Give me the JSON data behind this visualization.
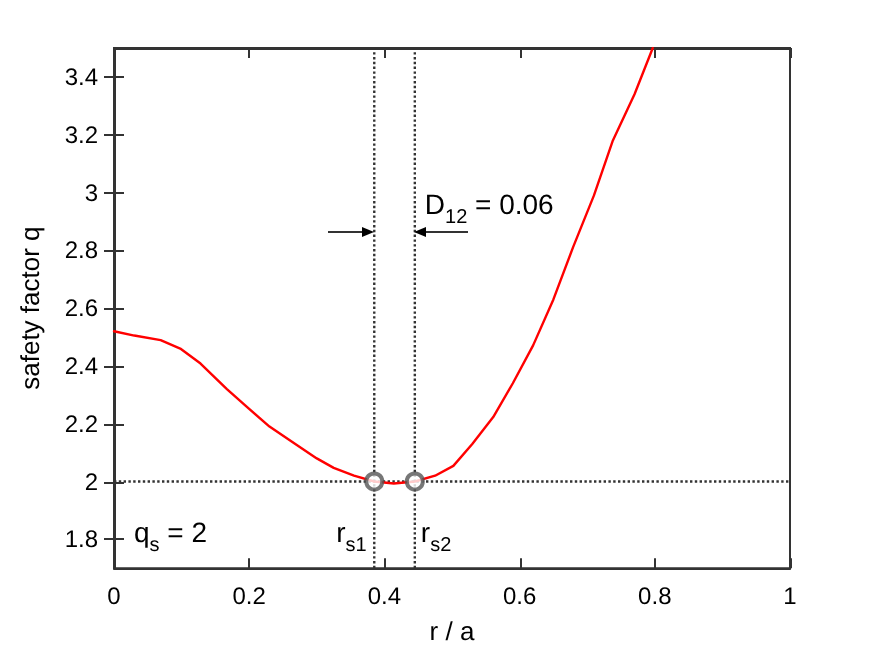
{
  "chart_data": {
    "type": "line",
    "xlabel": "r / a",
    "ylabel": "safety factor q",
    "x": [
      0,
      0.03,
      0.069,
      0.098,
      0.128,
      0.167,
      0.197,
      0.23,
      0.266,
      0.3,
      0.325,
      0.355,
      0.385,
      0.414,
      0.445,
      0.475,
      0.502,
      0.53,
      0.561,
      0.59,
      0.62,
      0.65,
      0.679,
      0.71,
      0.738,
      0.77,
      0.797
    ],
    "series": [
      {
        "color": "#ff0000",
        "marker": "none",
        "values": [
          2.52,
          2.505,
          2.489,
          2.46,
          2.408,
          2.32,
          2.257,
          2.19,
          2.133,
          2.08,
          2.047,
          2.02,
          2.0,
          1.993,
          2.0,
          2.02,
          2.054,
          2.13,
          2.223,
          2.34,
          2.471,
          2.63,
          2.81,
          2.99,
          3.18,
          3.34,
          3.5
        ]
      },
      {
        "type": "scatter",
        "color": "#555555",
        "marker": "circle",
        "x": [
          0.385,
          0.445
        ],
        "values": [
          2,
          2
        ]
      }
    ],
    "xlim": [
      0,
      1
    ],
    "xticks": [
      0,
      0.2,
      0.4,
      0.6,
      0.8,
      1
    ],
    "ylim": [
      1.7,
      3.5
    ],
    "yticks": [
      1.8,
      2,
      2.2,
      2.4,
      2.6,
      2.8,
      3,
      3.2,
      3.4
    ],
    "grid": false,
    "ref_lines": [
      {
        "axis": "x",
        "value": 0.385,
        "color": "#333333",
        "line_style": "dotted",
        "label": "r$_{s1}$"
      },
      {
        "axis": "x",
        "value": 0.445,
        "color": "#333333",
        "line_style": "dotted",
        "label": "r$_{s2}$"
      },
      {
        "axis": "y",
        "value": 2,
        "color": "#333333",
        "line_style": "dotted",
        "label": "q$_{s}$ = 2"
      }
    ],
    "annotations": [
      "D$_{12}$ = 0.06"
    ]
  }
}
